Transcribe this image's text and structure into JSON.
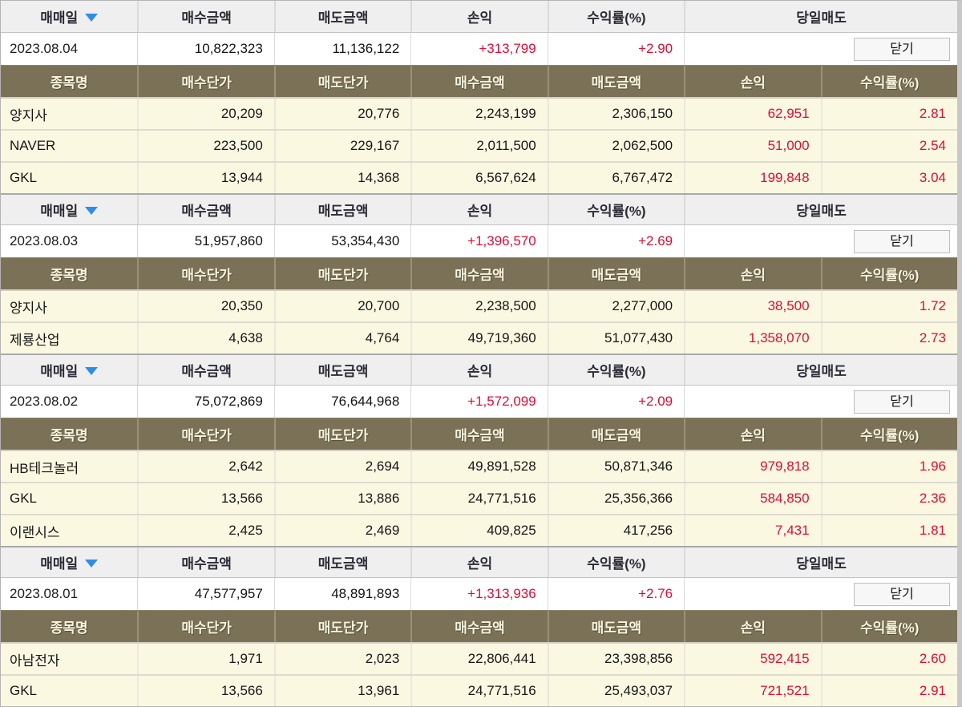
{
  "labels": {
    "date_col": "매매일",
    "buy_amount": "매수금액",
    "sell_amount": "매도금액",
    "profit": "손익",
    "rate": "수익률(%)",
    "same_day_sell": "당일매도",
    "stock_name": "종목명",
    "buy_price": "매수단가",
    "sell_price": "매도단가",
    "close_button": "닫기"
  },
  "colors": {
    "header_bg": "#efefef",
    "subheader_bg": "#7b7157",
    "row_bg": "#fbf8e2",
    "profit_red": "#e60a33",
    "sort_arrow_blue": "#2e8ee5"
  },
  "sections": [
    {
      "date": "2023.08.04",
      "buy_total": "10,822,323",
      "sell_total": "11,136,122",
      "profit_total": "+313,799",
      "rate_total": "+2.90",
      "rows": [
        {
          "name": "양지사",
          "buy_price": "20,209",
          "sell_price": "20,776",
          "buy_amount": "2,243,199",
          "sell_amount": "2,306,150",
          "profit": "62,951",
          "rate": "2.81"
        },
        {
          "name": "NAVER",
          "buy_price": "223,500",
          "sell_price": "229,167",
          "buy_amount": "2,011,500",
          "sell_amount": "2,062,500",
          "profit": "51,000",
          "rate": "2.54"
        },
        {
          "name": "GKL",
          "buy_price": "13,944",
          "sell_price": "14,368",
          "buy_amount": "6,567,624",
          "sell_amount": "6,767,472",
          "profit": "199,848",
          "rate": "3.04"
        }
      ]
    },
    {
      "date": "2023.08.03",
      "buy_total": "51,957,860",
      "sell_total": "53,354,430",
      "profit_total": "+1,396,570",
      "rate_total": "+2.69",
      "rows": [
        {
          "name": "양지사",
          "buy_price": "20,350",
          "sell_price": "20,700",
          "buy_amount": "2,238,500",
          "sell_amount": "2,277,000",
          "profit": "38,500",
          "rate": "1.72"
        },
        {
          "name": "제룡산업",
          "buy_price": "4,638",
          "sell_price": "4,764",
          "buy_amount": "49,719,360",
          "sell_amount": "51,077,430",
          "profit": "1,358,070",
          "rate": "2.73"
        }
      ]
    },
    {
      "date": "2023.08.02",
      "buy_total": "75,072,869",
      "sell_total": "76,644,968",
      "profit_total": "+1,572,099",
      "rate_total": "+2.09",
      "rows": [
        {
          "name": "HB테크놀러",
          "buy_price": "2,642",
          "sell_price": "2,694",
          "buy_amount": "49,891,528",
          "sell_amount": "50,871,346",
          "profit": "979,818",
          "rate": "1.96"
        },
        {
          "name": "GKL",
          "buy_price": "13,566",
          "sell_price": "13,886",
          "buy_amount": "24,771,516",
          "sell_amount": "25,356,366",
          "profit": "584,850",
          "rate": "2.36"
        },
        {
          "name": "이랜시스",
          "buy_price": "2,425",
          "sell_price": "2,469",
          "buy_amount": "409,825",
          "sell_amount": "417,256",
          "profit": "7,431",
          "rate": "1.81"
        }
      ]
    },
    {
      "date": "2023.08.01",
      "buy_total": "47,577,957",
      "sell_total": "48,891,893",
      "profit_total": "+1,313,936",
      "rate_total": "+2.76",
      "rows": [
        {
          "name": "아남전자",
          "buy_price": "1,971",
          "sell_price": "2,023",
          "buy_amount": "22,806,441",
          "sell_amount": "23,398,856",
          "profit": "592,415",
          "rate": "2.60"
        },
        {
          "name": "GKL",
          "buy_price": "13,566",
          "sell_price": "13,961",
          "buy_amount": "24,771,516",
          "sell_amount": "25,493,037",
          "profit": "721,521",
          "rate": "2.91"
        }
      ]
    }
  ]
}
